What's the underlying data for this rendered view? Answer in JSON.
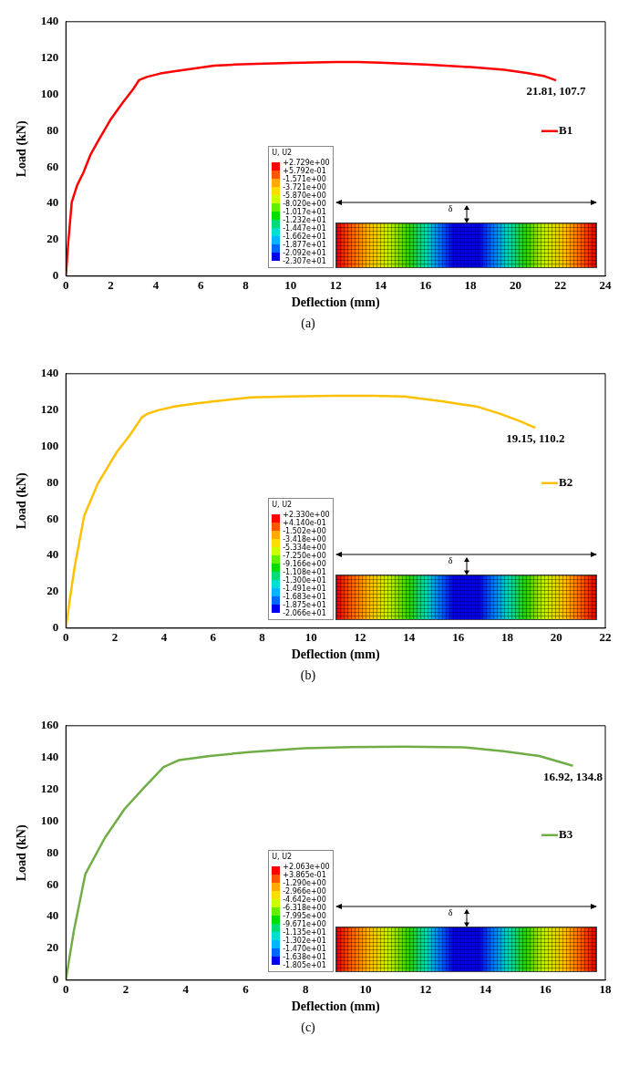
{
  "chart_data": [
    {
      "type": "line",
      "title": "(a)",
      "xlabel": "Deflection (mm)",
      "ylabel": "Load (kN)",
      "xlim": [
        0,
        24
      ],
      "xticks": [
        0,
        2,
        4,
        6,
        8,
        10,
        12,
        14,
        16,
        18,
        20,
        22,
        24
      ],
      "ylim": [
        0,
        140
      ],
      "yticks": [
        0,
        20,
        40,
        60,
        80,
        100,
        120,
        140
      ],
      "grid": false,
      "legend": "right",
      "marker": "none",
      "series": [
        {
          "name": "B1",
          "color": "#ff0000",
          "x": [
            0,
            0.1,
            0.26,
            0.5,
            0.77,
            1.1,
            1.45,
            1.97,
            2.5,
            3,
            3.25,
            3.6,
            4.2,
            4.87,
            5.6,
            6.58,
            7.5,
            8.5,
            10,
            12,
            13,
            14,
            16,
            18,
            19.5,
            20.5,
            21.3,
            21.81
          ],
          "values": [
            0,
            18,
            40.7,
            50,
            56.7,
            67,
            74.7,
            85.8,
            95,
            103,
            107.8,
            109.6,
            111.5,
            112.8,
            114,
            115.8,
            116.4,
            116.8,
            117.3,
            117.8,
            117.8,
            117.5,
            116.5,
            115,
            113.5,
            111.8,
            110,
            107.7
          ]
        }
      ],
      "annotations": [
        {
          "text": "21.81, 107.7",
          "x": 21.81,
          "y": 107.7
        },
        "U, U2",
        "+2.729e+00",
        "+5.792e-01",
        "-1.571e+00",
        "-3.721e+00",
        "-5.870e+00",
        "-8.020e+00",
        "-1.017e+01",
        "-1.232e+01",
        "-1.447e+01",
        "-1.662e+01",
        "-1.877e+01",
        "-2.092e+01",
        "-2.307e+01",
        "δ"
      ]
    },
    {
      "type": "line",
      "title": "(b)",
      "xlabel": "Deflection (mm)",
      "ylabel": "Load (kN)",
      "xlim": [
        0,
        22
      ],
      "xticks": [
        0,
        2,
        4,
        6,
        8,
        10,
        12,
        14,
        16,
        18,
        20,
        22
      ],
      "ylim": [
        0,
        140
      ],
      "yticks": [
        0,
        20,
        40,
        60,
        80,
        100,
        120,
        140
      ],
      "grid": false,
      "legend": "right",
      "marker": "none",
      "series": [
        {
          "name": "B2",
          "color": "#ffc000",
          "x": [
            0,
            0.15,
            0.36,
            0.75,
            1.3,
            2.08,
            2.6,
            3.1,
            3.33,
            3.8,
            4.43,
            5.2,
            6,
            7.56,
            9.1,
            11,
            12.5,
            13.8,
            15.4,
            16.8,
            17.7,
            18.5,
            19.15
          ],
          "values": [
            0,
            15,
            34,
            62,
            79.5,
            97,
            106,
            116,
            118,
            120,
            122,
            123.5,
            124.7,
            127,
            127.5,
            127.8,
            127.8,
            127.5,
            124.7,
            121.8,
            118,
            114,
            110.2
          ]
        }
      ],
      "annotations": [
        {
          "text": "19.15, 110.2",
          "x": 19.15,
          "y": 110.2
        },
        "U, U2",
        "+2.330e+00",
        "+4.140e-01",
        "-1.502e+00",
        "-3.418e+00",
        "-5.334e+00",
        "-7.250e+00",
        "-9.166e+00",
        "-1.108e+01",
        "-1.300e+01",
        "-1.491e+01",
        "-1.683e+01",
        "-1.875e+01",
        "-2.066e+01",
        "δ"
      ]
    },
    {
      "type": "line",
      "title": "(c)",
      "xlabel": "Deflection (mm)",
      "ylabel": "Load (kN)",
      "xlim": [
        0,
        18
      ],
      "xticks": [
        0,
        2,
        4,
        6,
        8,
        10,
        12,
        14,
        16,
        18
      ],
      "ylim": [
        0,
        160
      ],
      "yticks": [
        0,
        20,
        40,
        60,
        80,
        100,
        120,
        140,
        160
      ],
      "grid": false,
      "legend": "right",
      "marker": "none",
      "series": [
        {
          "name": "B3",
          "color": "#70ad47",
          "x": [
            0,
            0.1,
            0.26,
            0.65,
            1.3,
            1.96,
            2.6,
            3.26,
            3.78,
            4.8,
            6.1,
            7.95,
            9.5,
            11.3,
            13.3,
            14.6,
            15.8,
            16.92
          ],
          "values": [
            0,
            12,
            30.5,
            66.8,
            89.5,
            107.7,
            121,
            134,
            138.4,
            141,
            143.4,
            145.9,
            146.5,
            146.8,
            146.4,
            144,
            141,
            134.8
          ]
        }
      ],
      "annotations": [
        {
          "text": "16.92, 134.8",
          "x": 16.92,
          "y": 134.8
        },
        "U, U2",
        "+2.063e+00",
        "+3.865e-01",
        "-1.290e+00",
        "-2.966e+00",
        "-4.642e+00",
        "-6.318e+00",
        "-7.995e+00",
        "-9.671e+00",
        "-1.135e+01",
        "-1.302e+01",
        "-1.470e+01",
        "-1.638e+01",
        "-1.805e+01",
        "δ"
      ]
    }
  ]
}
